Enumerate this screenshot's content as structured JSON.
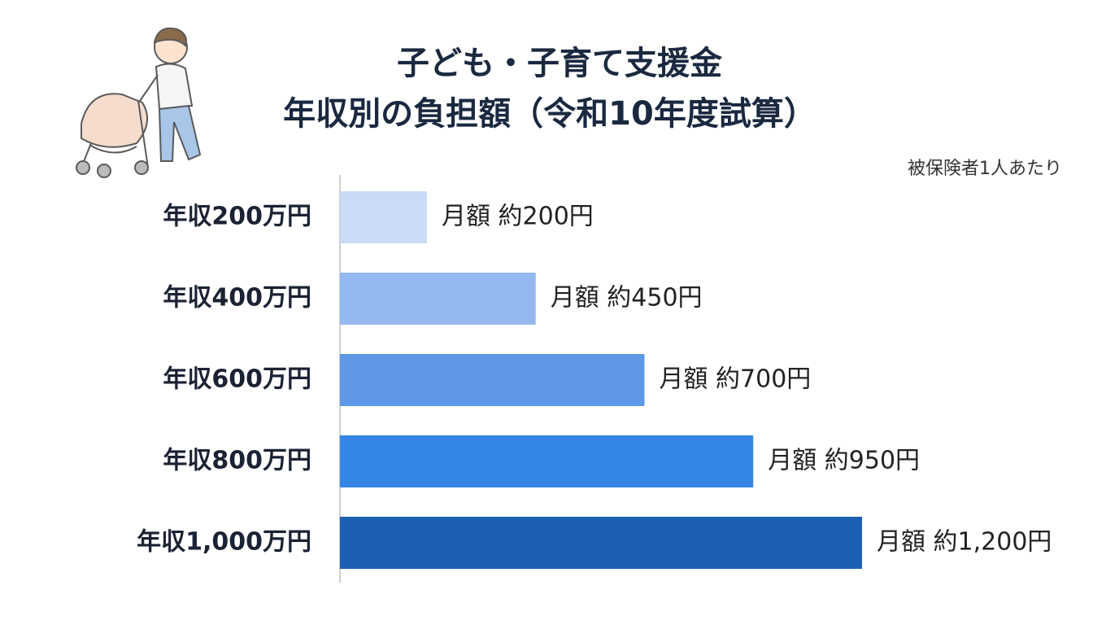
{
  "chart_data": {
    "type": "bar",
    "orientation": "horizontal",
    "title_lines": [
      "子ども・子育て支援金",
      "年収別の負担額（令和10年度試算）"
    ],
    "note": "被保険者1人あたり",
    "categories": [
      "年収200万円",
      "年収400万円",
      "年収600万円",
      "年収800万円",
      "年収1,000万円"
    ],
    "values": [
      200,
      450,
      700,
      950,
      1200
    ],
    "value_labels": [
      "月額 約200円",
      "月額 約450円",
      "月額 約700円",
      "月額 約950円",
      "月額 約1,200円"
    ],
    "colors": [
      "#c9dbf7",
      "#94b9f0",
      "#5e98e6",
      "#3585e6",
      "#1c5fb5"
    ]
  }
}
